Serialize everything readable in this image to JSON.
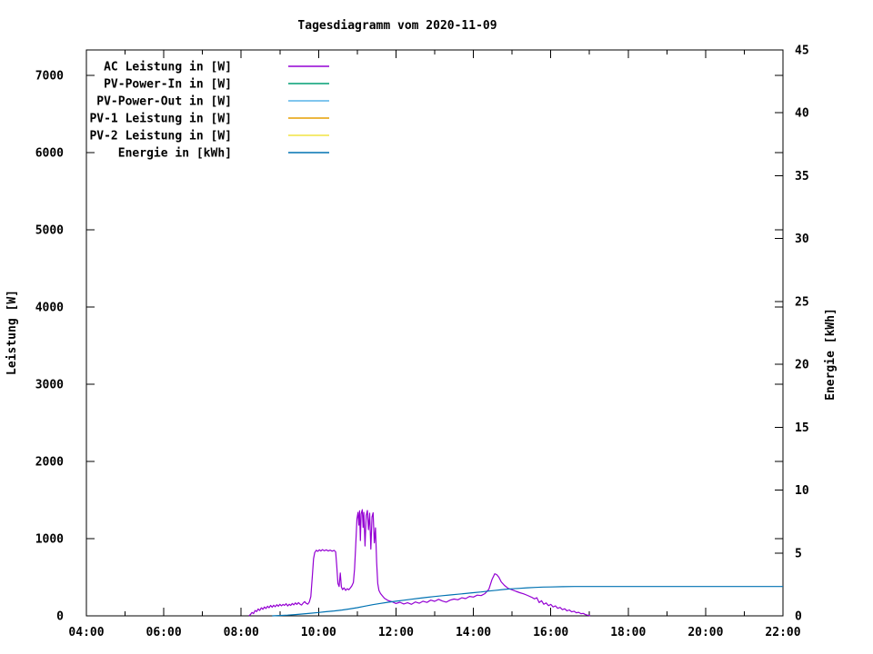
{
  "title": "Tagesdiagramm vom 2020-11-09",
  "colors": {
    "background": "#ffffff",
    "axis": "#000000",
    "ac_power": "#9400d3",
    "pv_power_in": "#009e73",
    "pv_power_out": "#56b4e9",
    "pv1_power": "#e69f00",
    "pv2_power": "#f0e442",
    "energy": "#0072b2"
  },
  "chart_data": {
    "type": "line",
    "title": "Tagesdiagramm vom 2020-11-09",
    "grid": false,
    "legend_position": "top-left-inside",
    "x_axis": {
      "unit": "time",
      "range_hours": [
        4,
        22
      ],
      "major_tick_hours": [
        4,
        6,
        8,
        10,
        12,
        14,
        16,
        18,
        20,
        22
      ],
      "major_tick_labels": [
        "04:00",
        "06:00",
        "08:00",
        "10:00",
        "12:00",
        "14:00",
        "16:00",
        "18:00",
        "20:00",
        "22:00"
      ],
      "minor_tick_hours": [
        5,
        7,
        9,
        11,
        13,
        15,
        17,
        19,
        21
      ]
    },
    "y_left": {
      "label": "Leistung [W]",
      "range": [
        0,
        7330
      ],
      "tick_values": [
        0,
        1000,
        2000,
        3000,
        4000,
        5000,
        6000,
        7000
      ],
      "tick_labels": [
        "0",
        "1000",
        "2000",
        "3000",
        "4000",
        "5000",
        "6000",
        "7000"
      ]
    },
    "y_right": {
      "label": "Energie [kWh]",
      "range": [
        0,
        45
      ],
      "tick_values": [
        0,
        5,
        10,
        15,
        20,
        25,
        30,
        35,
        40,
        45
      ],
      "tick_labels": [
        "0",
        "5",
        "10",
        "15",
        "20",
        "25",
        "30",
        "35",
        "40",
        "45"
      ]
    },
    "legend": [
      {
        "label": "AC Leistung in [W]",
        "color": "#9400d3"
      },
      {
        "label": "PV-Power-In in [W]",
        "color": "#009e73"
      },
      {
        "label": "PV-Power-Out in [W]",
        "color": "#56b4e9"
      },
      {
        "label": "PV-1 Leistung in [W]",
        "color": "#e69f00"
      },
      {
        "label": "PV-2 Leistung in [W]",
        "color": "#f0e442"
      },
      {
        "label": "Energie in [kWh]",
        "color": "#0072b2"
      }
    ],
    "series": [
      {
        "name": "AC Leistung in [W]",
        "color": "#9400d3",
        "axis": "left",
        "points": [
          [
            8.2,
            0
          ],
          [
            8.24,
            18
          ],
          [
            8.28,
            45
          ],
          [
            8.32,
            30
          ],
          [
            8.36,
            70
          ],
          [
            8.4,
            55
          ],
          [
            8.44,
            90
          ],
          [
            8.48,
            70
          ],
          [
            8.52,
            105
          ],
          [
            8.56,
            85
          ],
          [
            8.6,
            115
          ],
          [
            8.64,
            95
          ],
          [
            8.68,
            125
          ],
          [
            8.72,
            105
          ],
          [
            8.76,
            135
          ],
          [
            8.8,
            112
          ],
          [
            8.84,
            138
          ],
          [
            8.88,
            118
          ],
          [
            8.92,
            145
          ],
          [
            8.96,
            125
          ],
          [
            9.0,
            150
          ],
          [
            9.04,
            130
          ],
          [
            9.08,
            148
          ],
          [
            9.12,
            135
          ],
          [
            9.16,
            158
          ],
          [
            9.2,
            128
          ],
          [
            9.24,
            150
          ],
          [
            9.28,
            135
          ],
          [
            9.32,
            160
          ],
          [
            9.36,
            142
          ],
          [
            9.4,
            168
          ],
          [
            9.44,
            148
          ],
          [
            9.48,
            172
          ],
          [
            9.52,
            152
          ],
          [
            9.56,
            140
          ],
          [
            9.6,
            165
          ],
          [
            9.64,
            185
          ],
          [
            9.68,
            162
          ],
          [
            9.72,
            152
          ],
          [
            9.76,
            178
          ],
          [
            9.8,
            250
          ],
          [
            9.84,
            520
          ],
          [
            9.87,
            740
          ],
          [
            9.9,
            820
          ],
          [
            9.94,
            850
          ],
          [
            9.98,
            835
          ],
          [
            10.02,
            855
          ],
          [
            10.06,
            840
          ],
          [
            10.1,
            858
          ],
          [
            10.15,
            842
          ],
          [
            10.2,
            855
          ],
          [
            10.25,
            840
          ],
          [
            10.3,
            852
          ],
          [
            10.35,
            838
          ],
          [
            10.4,
            848
          ],
          [
            10.44,
            830
          ],
          [
            10.47,
            650
          ],
          [
            10.5,
            420
          ],
          [
            10.53,
            380
          ],
          [
            10.56,
            555
          ],
          [
            10.59,
            375
          ],
          [
            10.62,
            340
          ],
          [
            10.66,
            362
          ],
          [
            10.7,
            330
          ],
          [
            10.74,
            352
          ],
          [
            10.78,
            338
          ],
          [
            10.82,
            360
          ],
          [
            10.86,
            388
          ],
          [
            10.9,
            432
          ],
          [
            10.93,
            610
          ],
          [
            10.96,
            920
          ],
          [
            10.99,
            1255
          ],
          [
            11.02,
            1340
          ],
          [
            11.04,
            1175
          ],
          [
            11.06,
            1360
          ],
          [
            11.08,
            975
          ],
          [
            11.1,
            1320
          ],
          [
            11.13,
            1375
          ],
          [
            11.15,
            1145
          ],
          [
            11.17,
            1340
          ],
          [
            11.2,
            905
          ],
          [
            11.23,
            1300
          ],
          [
            11.26,
            1365
          ],
          [
            11.29,
            1115
          ],
          [
            11.32,
            1330
          ],
          [
            11.35,
            865
          ],
          [
            11.38,
            1280
          ],
          [
            11.41,
            1335
          ],
          [
            11.44,
            945
          ],
          [
            11.47,
            1140
          ],
          [
            11.5,
            690
          ],
          [
            11.53,
            420
          ],
          [
            11.56,
            330
          ],
          [
            11.6,
            290
          ],
          [
            11.65,
            258
          ],
          [
            11.7,
            228
          ],
          [
            11.8,
            198
          ],
          [
            11.9,
            182
          ],
          [
            12.0,
            160
          ],
          [
            12.1,
            176
          ],
          [
            12.2,
            154
          ],
          [
            12.3,
            170
          ],
          [
            12.4,
            150
          ],
          [
            12.5,
            180
          ],
          [
            12.6,
            163
          ],
          [
            12.7,
            190
          ],
          [
            12.8,
            174
          ],
          [
            12.9,
            204
          ],
          [
            13.0,
            188
          ],
          [
            13.1,
            214
          ],
          [
            13.2,
            192
          ],
          [
            13.3,
            178
          ],
          [
            13.4,
            204
          ],
          [
            13.5,
            218
          ],
          [
            13.6,
            208
          ],
          [
            13.7,
            234
          ],
          [
            13.8,
            224
          ],
          [
            13.9,
            252
          ],
          [
            14.0,
            244
          ],
          [
            14.1,
            268
          ],
          [
            14.2,
            262
          ],
          [
            14.3,
            288
          ],
          [
            14.4,
            345
          ],
          [
            14.48,
            470
          ],
          [
            14.55,
            545
          ],
          [
            14.6,
            535
          ],
          [
            14.66,
            500
          ],
          [
            14.72,
            440
          ],
          [
            14.8,
            395
          ],
          [
            14.9,
            355
          ],
          [
            15.0,
            338
          ],
          [
            15.1,
            318
          ],
          [
            15.2,
            300
          ],
          [
            15.3,
            285
          ],
          [
            15.4,
            265
          ],
          [
            15.5,
            242
          ],
          [
            15.58,
            220
          ],
          [
            15.64,
            235
          ],
          [
            15.7,
            172
          ],
          [
            15.76,
            196
          ],
          [
            15.82,
            150
          ],
          [
            15.88,
            168
          ],
          [
            15.94,
            132
          ],
          [
            16.0,
            148
          ],
          [
            16.06,
            115
          ],
          [
            16.12,
            130
          ],
          [
            16.18,
            98
          ],
          [
            16.24,
            110
          ],
          [
            16.3,
            80
          ],
          [
            16.36,
            92
          ],
          [
            16.42,
            65
          ],
          [
            16.48,
            76
          ],
          [
            16.54,
            52
          ],
          [
            16.6,
            60
          ],
          [
            16.66,
            40
          ],
          [
            16.72,
            46
          ],
          [
            16.78,
            28
          ],
          [
            16.84,
            32
          ],
          [
            16.9,
            15
          ],
          [
            16.96,
            8
          ],
          [
            17.02,
            2
          ]
        ]
      },
      {
        "name": "Energie in [kWh]",
        "color": "#0072b2",
        "axis": "right",
        "points": [
          [
            8.8,
            0.0
          ],
          [
            9.0,
            0.03
          ],
          [
            9.2,
            0.06
          ],
          [
            9.4,
            0.1
          ],
          [
            9.6,
            0.15
          ],
          [
            9.8,
            0.21
          ],
          [
            10.0,
            0.27
          ],
          [
            10.2,
            0.33
          ],
          [
            10.4,
            0.39
          ],
          [
            10.6,
            0.46
          ],
          [
            10.8,
            0.55
          ],
          [
            11.0,
            0.65
          ],
          [
            11.2,
            0.77
          ],
          [
            11.4,
            0.89
          ],
          [
            11.6,
            0.99
          ],
          [
            11.8,
            1.08
          ],
          [
            12.0,
            1.16
          ],
          [
            12.2,
            1.24
          ],
          [
            12.4,
            1.32
          ],
          [
            12.6,
            1.4
          ],
          [
            12.8,
            1.47
          ],
          [
            13.0,
            1.54
          ],
          [
            13.2,
            1.6
          ],
          [
            13.4,
            1.66
          ],
          [
            13.6,
            1.72
          ],
          [
            13.8,
            1.78
          ],
          [
            14.0,
            1.84
          ],
          [
            14.2,
            1.9
          ],
          [
            14.4,
            1.97
          ],
          [
            14.6,
            2.04
          ],
          [
            14.8,
            2.1
          ],
          [
            15.0,
            2.15
          ],
          [
            15.2,
            2.19
          ],
          [
            15.4,
            2.23
          ],
          [
            15.6,
            2.26
          ],
          [
            15.8,
            2.29
          ],
          [
            16.0,
            2.3
          ],
          [
            16.3,
            2.32
          ],
          [
            16.6,
            2.33
          ],
          [
            17.0,
            2.33
          ],
          [
            18.0,
            2.33
          ],
          [
            20.0,
            2.33
          ],
          [
            22.0,
            2.33
          ]
        ]
      }
    ]
  }
}
